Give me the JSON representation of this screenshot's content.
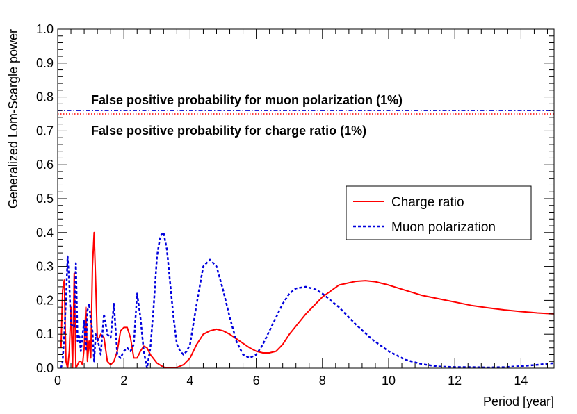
{
  "chart_data": {
    "type": "line",
    "title": "",
    "xlabel": "Period [year]",
    "ylabel": "Generalized Lom-Scargle power",
    "xlim": [
      0,
      15
    ],
    "ylim": [
      0,
      1
    ],
    "x_ticks": [
      0,
      2,
      4,
      6,
      8,
      10,
      12,
      14
    ],
    "x_tick_labels": [
      "0",
      "2",
      "4",
      "6",
      "8",
      "10",
      "12",
      "14"
    ],
    "y_ticks": [
      0,
      0.1,
      0.2,
      0.3,
      0.4,
      0.5,
      0.6,
      0.7,
      0.8,
      0.9,
      1.0
    ],
    "y_tick_labels": [
      "0.0",
      "0.1",
      "0.2",
      "0.3",
      "0.4",
      "0.5",
      "0.6",
      "0.7",
      "0.8",
      "0.9",
      "1.0"
    ],
    "grid": false,
    "legend_position": "center-right",
    "thresholds": [
      {
        "name": "muon",
        "label": "False positive probability for muon polarization (1%)",
        "y": 0.76,
        "color": "#0000cc",
        "style": "dashdot"
      },
      {
        "name": "charge",
        "label": "False positive probability for charge ratio (1%)",
        "y": 0.75,
        "color": "#ff0000",
        "style": "dotted"
      }
    ],
    "series": [
      {
        "name": "Charge ratio",
        "color": "#ff0000",
        "style": "solid",
        "x": [
          0.1,
          0.15,
          0.2,
          0.25,
          0.3,
          0.35,
          0.4,
          0.45,
          0.5,
          0.55,
          0.6,
          0.65,
          0.7,
          0.75,
          0.8,
          0.85,
          0.9,
          0.95,
          1.0,
          1.05,
          1.1,
          1.15,
          1.2,
          1.3,
          1.4,
          1.5,
          1.6,
          1.7,
          1.8,
          1.9,
          2.0,
          2.1,
          2.2,
          2.3,
          2.4,
          2.5,
          2.6,
          2.7,
          2.8,
          3.0,
          3.2,
          3.4,
          3.6,
          3.8,
          4.0,
          4.2,
          4.4,
          4.6,
          4.8,
          5.0,
          5.2,
          5.5,
          5.8,
          6.0,
          6.2,
          6.4,
          6.6,
          6.8,
          7.0,
          7.5,
          8.0,
          8.5,
          9.0,
          9.3,
          9.6,
          10.0,
          10.5,
          11.0,
          11.5,
          12.0,
          12.5,
          13.0,
          13.5,
          14.0,
          14.5,
          15.0
        ],
        "y": [
          0.06,
          0.23,
          0.26,
          0.02,
          0.0,
          0.05,
          0.18,
          0.0,
          0.28,
          0.0,
          0.01,
          0.02,
          0.02,
          0.01,
          0.06,
          0.18,
          0.02,
          0.08,
          0.03,
          0.3,
          0.4,
          0.25,
          0.08,
          0.1,
          0.09,
          0.02,
          0.01,
          0.02,
          0.05,
          0.11,
          0.12,
          0.12,
          0.09,
          0.03,
          0.03,
          0.05,
          0.065,
          0.06,
          0.04,
          0.015,
          0.003,
          0.0,
          0.002,
          0.01,
          0.03,
          0.07,
          0.1,
          0.11,
          0.115,
          0.11,
          0.1,
          0.08,
          0.06,
          0.05,
          0.045,
          0.045,
          0.05,
          0.07,
          0.1,
          0.16,
          0.21,
          0.245,
          0.256,
          0.258,
          0.255,
          0.245,
          0.23,
          0.215,
          0.205,
          0.195,
          0.185,
          0.178,
          0.172,
          0.167,
          0.163,
          0.16
        ]
      },
      {
        "name": "Muon polarization",
        "color": "#0000dd",
        "style": "dashed",
        "x": [
          0.1,
          0.15,
          0.2,
          0.25,
          0.3,
          0.35,
          0.4,
          0.5,
          0.55,
          0.6,
          0.65,
          0.7,
          0.8,
          0.85,
          0.9,
          0.95,
          1.0,
          1.05,
          1.1,
          1.15,
          1.2,
          1.3,
          1.4,
          1.5,
          1.6,
          1.7,
          1.8,
          1.9,
          2.0,
          2.1,
          2.2,
          2.3,
          2.4,
          2.5,
          2.6,
          2.7,
          2.8,
          2.9,
          3.0,
          3.1,
          3.2,
          3.3,
          3.4,
          3.5,
          3.6,
          3.7,
          3.8,
          3.9,
          4.0,
          4.2,
          4.4,
          4.6,
          4.8,
          5.0,
          5.2,
          5.4,
          5.6,
          5.8,
          6.0,
          6.2,
          6.5,
          6.8,
          7.0,
          7.2,
          7.5,
          7.8,
          8.0,
          8.5,
          9.0,
          9.5,
          10.0,
          10.5,
          11.0,
          11.5,
          12.0,
          12.5,
          13.0,
          13.5,
          14.0,
          14.5,
          15.0
        ],
        "y": [
          0.0,
          0.02,
          0.1,
          0.2,
          0.33,
          0.25,
          0.13,
          0.12,
          0.31,
          0.08,
          0.1,
          0.05,
          0.14,
          0.05,
          0.17,
          0.19,
          0.14,
          0.11,
          0.02,
          0.1,
          0.09,
          0.04,
          0.16,
          0.1,
          0.09,
          0.19,
          0.04,
          0.03,
          0.05,
          0.06,
          0.05,
          0.07,
          0.22,
          0.15,
          0.05,
          0.0,
          0.06,
          0.18,
          0.33,
          0.39,
          0.4,
          0.35,
          0.25,
          0.15,
          0.07,
          0.05,
          0.04,
          0.05,
          0.07,
          0.19,
          0.3,
          0.32,
          0.3,
          0.23,
          0.15,
          0.08,
          0.04,
          0.03,
          0.04,
          0.07,
          0.13,
          0.19,
          0.22,
          0.235,
          0.24,
          0.232,
          0.22,
          0.18,
          0.13,
          0.085,
          0.05,
          0.025,
          0.012,
          0.005,
          0.003,
          0.003,
          0.002,
          0.003,
          0.006,
          0.01,
          0.015
        ]
      }
    ]
  }
}
